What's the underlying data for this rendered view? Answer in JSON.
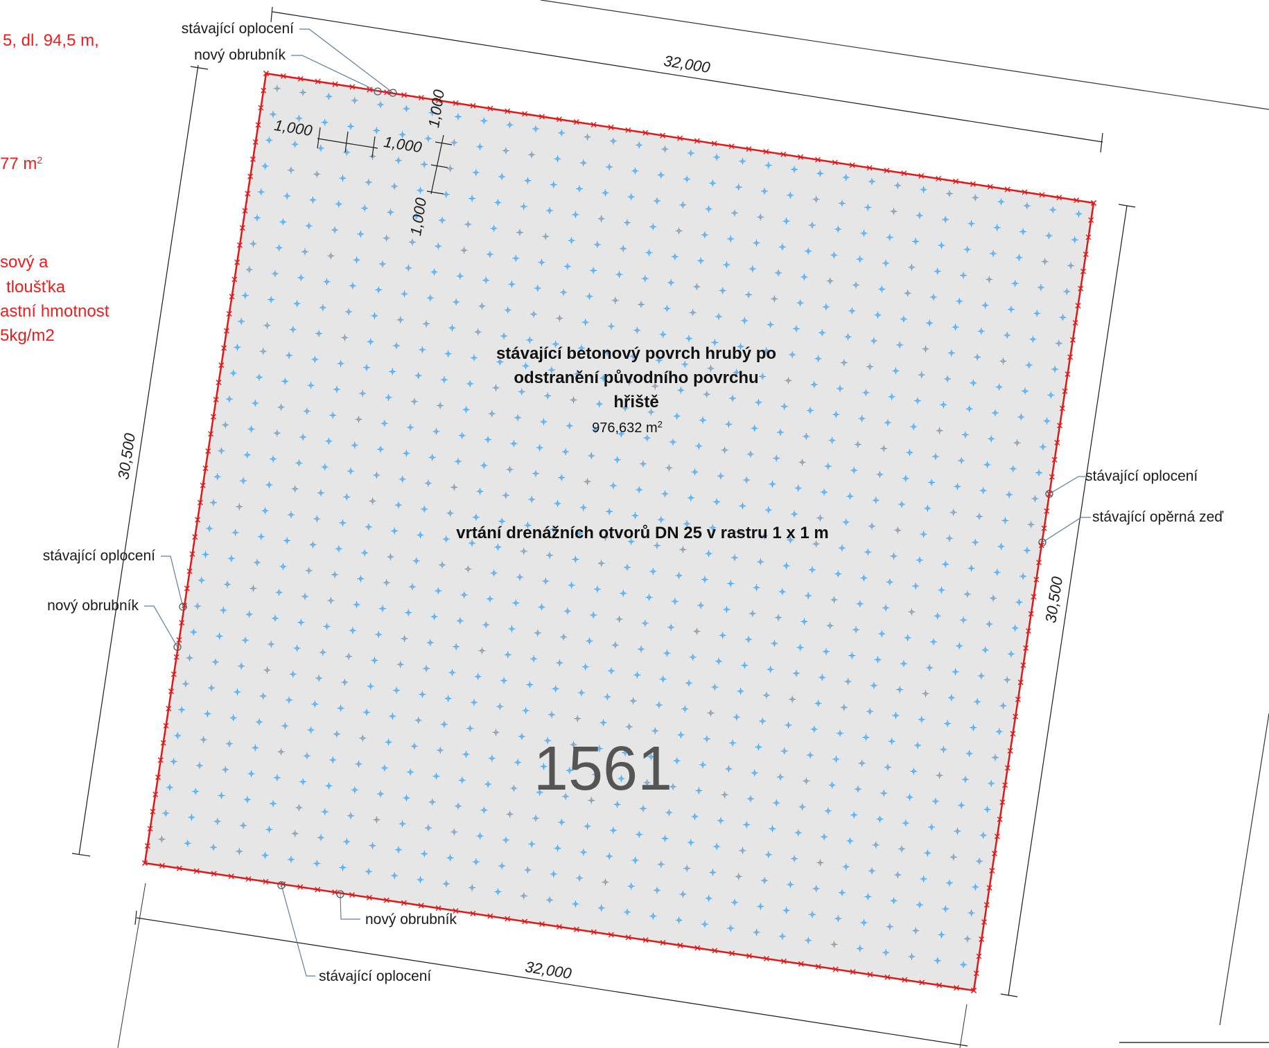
{
  "left_notes": {
    "line1": "5, dl. 94,5 m,",
    "line2": "77 m",
    "line2_sup": "2",
    "line3": "sový a",
    "line4": "tloušťka",
    "line5": "astní hmotnost",
    "line6": "5kg/m2"
  },
  "dimensions": {
    "top": "32,000",
    "bottom": "32,000",
    "left": "30,500",
    "right": "30,500",
    "grid_h1": "1,000",
    "grid_h2": "1,000",
    "grid_v1": "1,000",
    "grid_v2": "1,000"
  },
  "callouts": {
    "top_fence": "stávající oplocení",
    "top_curb": "nový obrubník",
    "left_fence": "stávající oplocení",
    "left_curb": "nový obrubník",
    "right_fence": "stávající oplocení",
    "right_wall": "stávající opěrná zeď",
    "bottom_curb": "nový obrubník",
    "bottom_fence": "stávající oplocení"
  },
  "center": {
    "title_line1": "stávající betonový povrch hrubý po",
    "title_line2": "odstranění původního povrchu",
    "title_line3": "hřiště",
    "area_value": "976,632 m",
    "area_sup": "2",
    "drilling": "vrtání drenážních otvorů DN 25 v rastru 1 x 1 m",
    "parcel_number": "1561"
  },
  "colors": {
    "surface_fill": "#e6e6e6",
    "boundary": "#e01818",
    "drain_marks": "#4aa3e8",
    "leader": "#5e7f99"
  }
}
